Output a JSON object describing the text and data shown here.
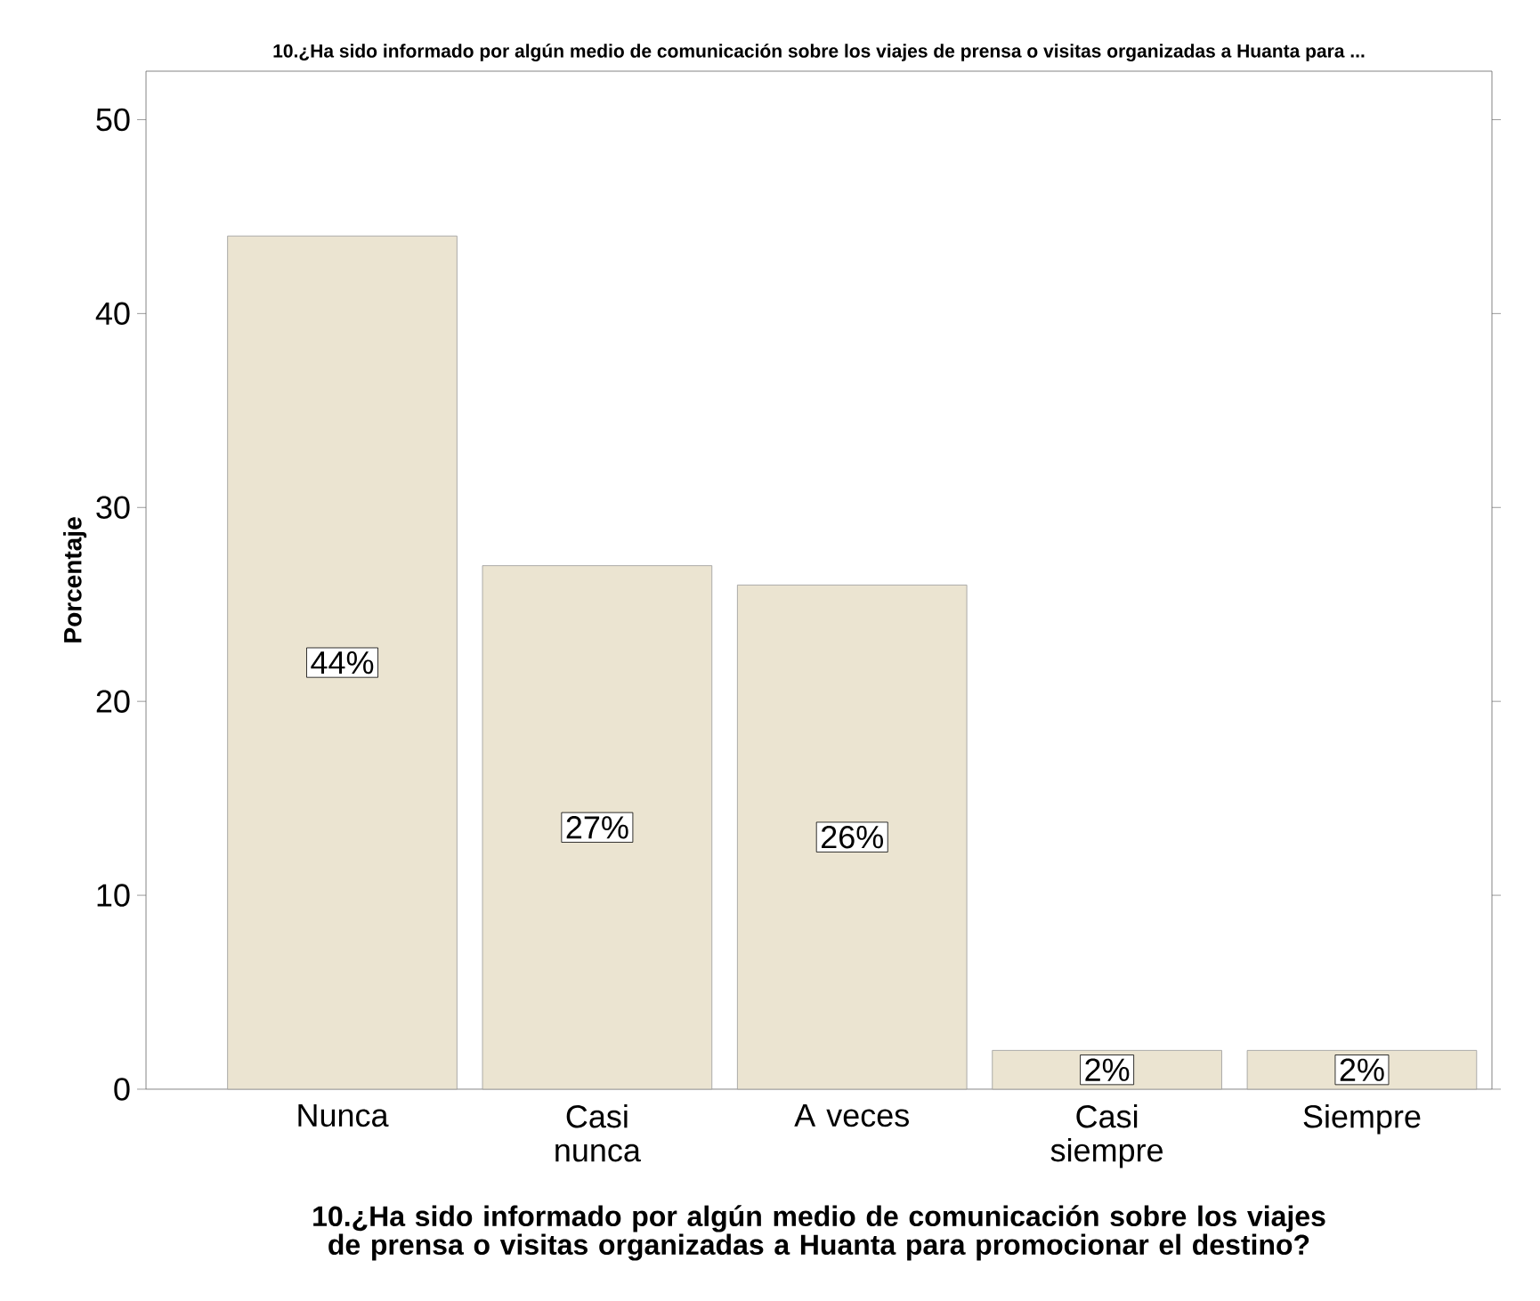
{
  "chart_data": {
    "type": "bar",
    "title": "10.¿Ha sido informado por algún medio de comunicación sobre los viajes de prensa o visitas organizadas a Huanta para ...",
    "xlabel": "10.¿Ha sido informado por algún medio de comunicación sobre los viajes de prensa o visitas organizadas a Huanta para promocionar el destino?",
    "ylabel": "Porcentaje",
    "categories": [
      "Nunca",
      "Casi nunca",
      "A veces",
      "Casi siempre",
      "Siempre"
    ],
    "values": [
      44,
      27,
      26,
      2,
      2
    ],
    "value_labels": [
      "44%",
      "27%",
      "26%",
      "2%",
      "2%"
    ],
    "color": "#ebe4d1",
    "ylim": [
      0,
      52.5
    ],
    "yticks": [
      0,
      10,
      20,
      30,
      40,
      50
    ],
    "grid": false
  }
}
